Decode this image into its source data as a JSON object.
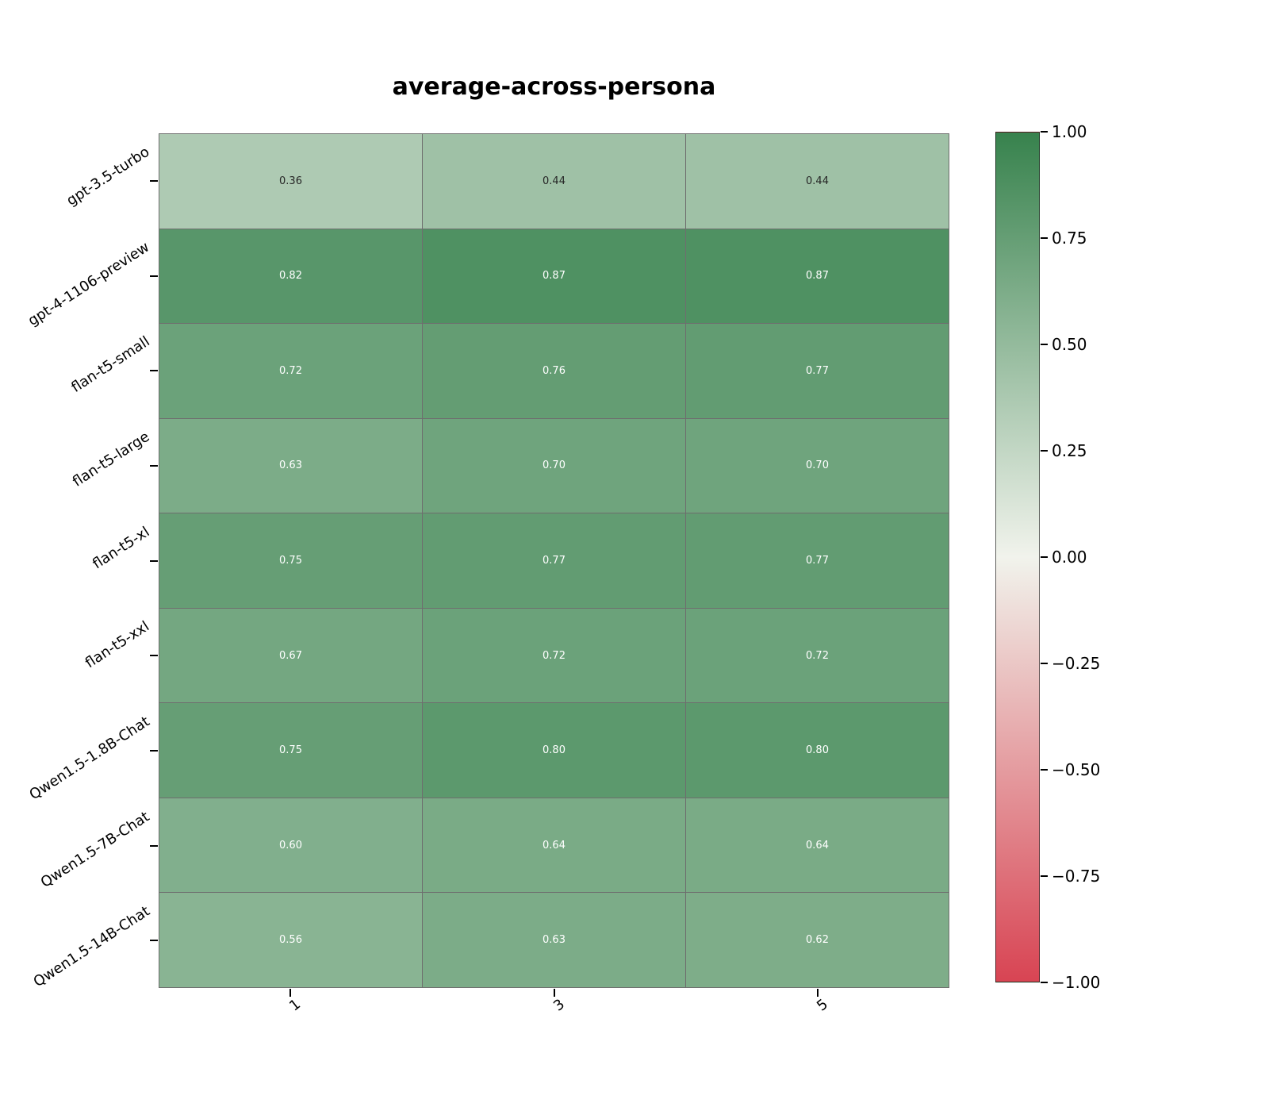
{
  "chart_data": {
    "type": "heatmap",
    "title": "average-across-persona",
    "rows": [
      "gpt-3.5-turbo",
      "gpt-4-1106-preview",
      "flan-t5-small",
      "flan-t5-large",
      "flan-t5-xl",
      "flan-t5-xxl",
      "Qwen1.5-1.8B-Chat",
      "Qwen1.5-7B-Chat",
      "Qwen1.5-14B-Chat"
    ],
    "columns": [
      "1",
      "3",
      "5"
    ],
    "values": [
      [
        0.36,
        0.44,
        0.44
      ],
      [
        0.82,
        0.87,
        0.87
      ],
      [
        0.72,
        0.76,
        0.77
      ],
      [
        0.63,
        0.7,
        0.7
      ],
      [
        0.75,
        0.77,
        0.77
      ],
      [
        0.67,
        0.72,
        0.72
      ],
      [
        0.75,
        0.8,
        0.8
      ],
      [
        0.6,
        0.64,
        0.64
      ],
      [
        0.56,
        0.63,
        0.62
      ]
    ],
    "value_format_decimals": 2,
    "colorbar": {
      "min": -1,
      "max": 1,
      "tick_labels": [
        "1.00",
        "0.75",
        "0.50",
        "0.25",
        "0.00",
        "−0.25",
        "−0.50",
        "−0.75",
        "−1.00"
      ],
      "legend_position": "right"
    },
    "colors": {
      "positive_end": "#37824d",
      "neutral_mid": "#f1f3ec",
      "negative_end": "#d84453",
      "gridline": "#6e6e6e",
      "annot_dark": "#262626",
      "annot_light": "#ffffff"
    },
    "layout_hints": {
      "grid_on": true,
      "x_tick_rotation_deg": -38,
      "y_tick_rotation_deg": -33
    }
  }
}
